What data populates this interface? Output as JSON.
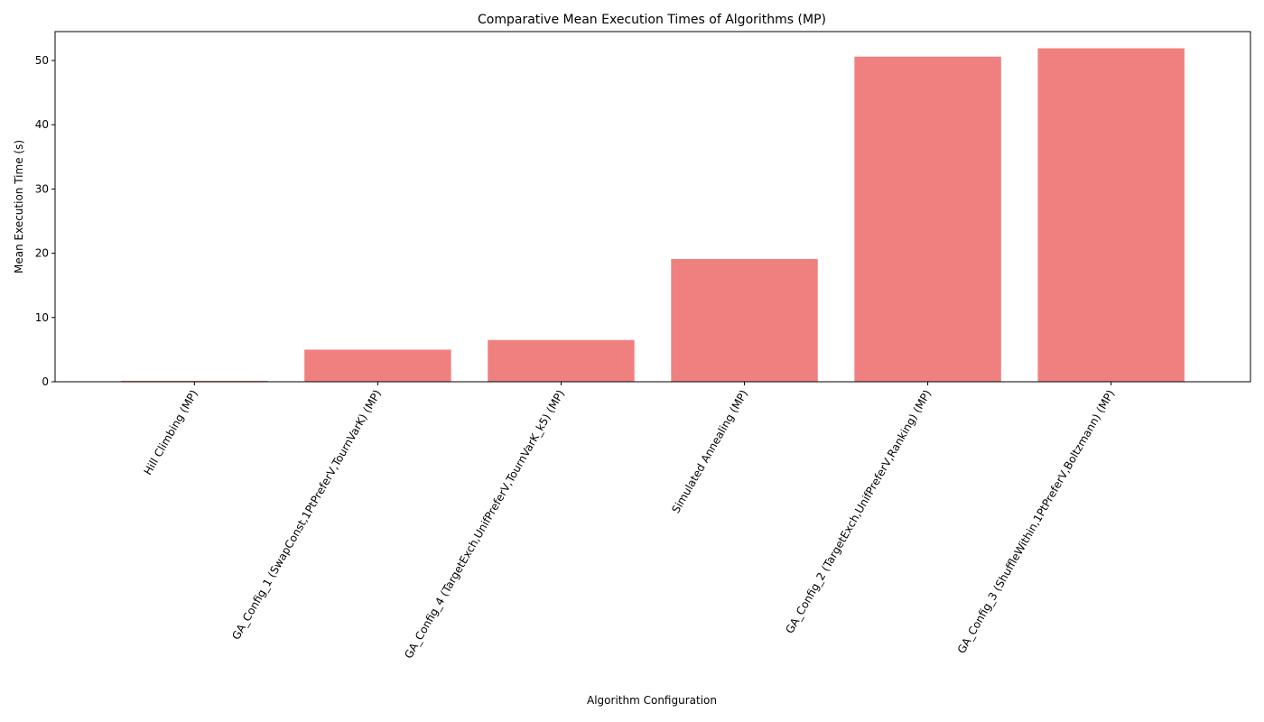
{
  "chart_data": {
    "type": "bar",
    "title": "Comparative Mean Execution Times of Algorithms (MP)",
    "xlabel": "Algorithm Configuration",
    "ylabel": "Mean Execution Time (s)",
    "categories": [
      "Hill Climbing (MP)",
      "GA_Config_1 (SwapConst,1PtPreferV,TournVarK) (MP)",
      "GA_Config_4 (TargetExch,UnifPreferV,TournVarK_k5) (MP)",
      "Simulated Annealing (MP)",
      "GA_Config_2 (TargetExch,UnifPreferV,Ranking) (MP)",
      "GA_Config_3 (ShuffleWithin,1PtPreferV,Boltzmann) (MP)"
    ],
    "values": [
      0.15,
      5.0,
      6.5,
      19.1,
      50.6,
      51.9
    ],
    "ylim": [
      0,
      54.5
    ],
    "yticks": [
      0,
      10,
      20,
      30,
      40,
      50
    ],
    "bar_color": "#f08080",
    "grid": false,
    "legend": "none"
  }
}
